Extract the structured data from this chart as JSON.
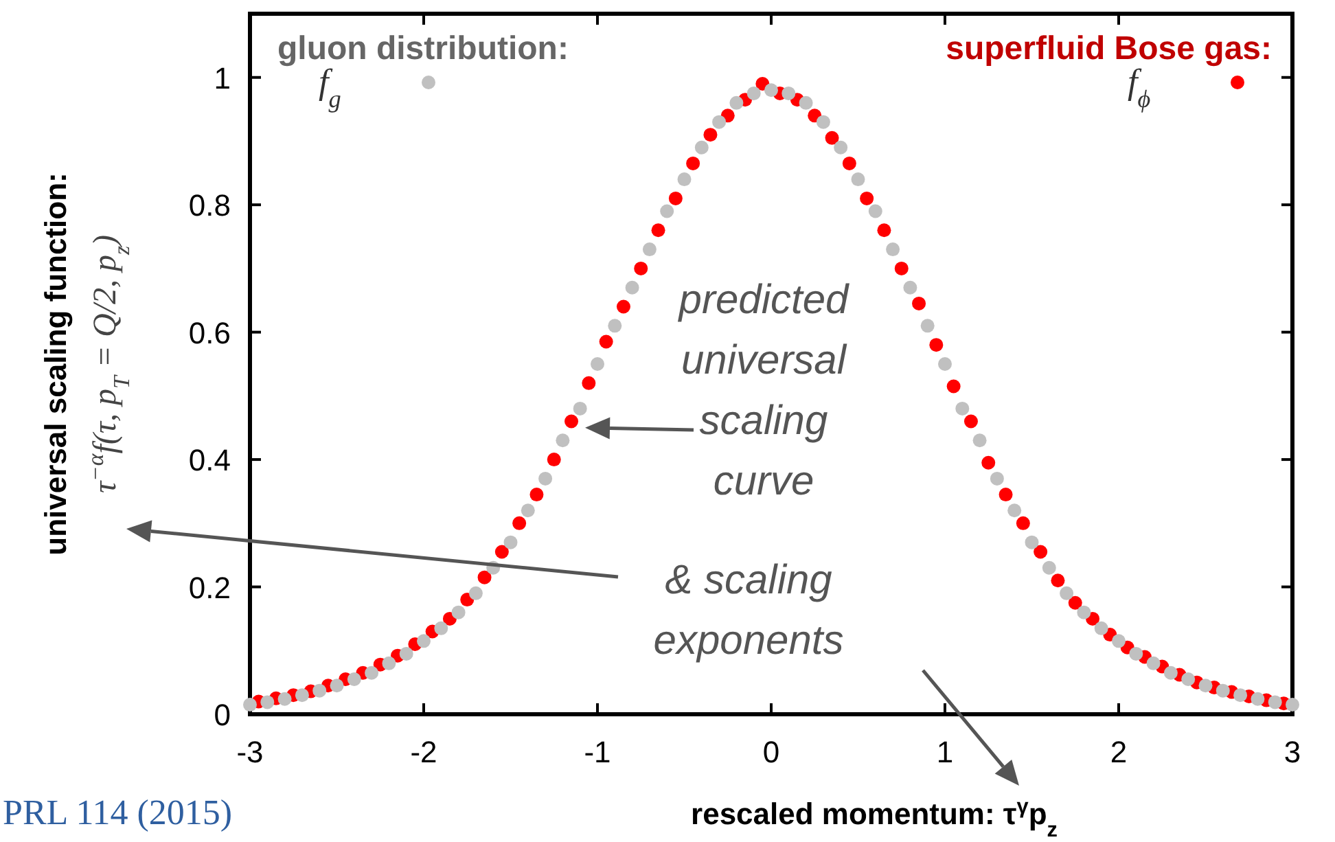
{
  "chart_data": {
    "type": "scatter",
    "xlabel": "rescaled momentum:  τ$^{γ}$p$_{z}$",
    "ylabel": "universal scaling function:\nτ$^{−α}$f(τ, p$_{T}$ = Q/2, p$_{z}$)",
    "xlim": [
      -3,
      3
    ],
    "ylim": [
      0,
      1.1
    ],
    "xticks": [
      -3,
      -2,
      -1,
      0,
      1,
      2,
      3
    ],
    "yticks": [
      0,
      0.2,
      0.4,
      0.6,
      0.8,
      1
    ],
    "grid": false,
    "marker": "circle",
    "legend": "top",
    "series": [
      {
        "name": "f$_{g}$",
        "color": "#c0c0c0",
        "x": [
          -3,
          -2.9,
          -2.8,
          -2.7,
          -2.6,
          -2.5,
          -2.4,
          -2.3,
          -2.2,
          -2.1,
          -2,
          -1.9,
          -1.8,
          -1.7,
          -1.6,
          -1.5,
          -1.4,
          -1.3,
          -1.2,
          -1.1,
          -1,
          -0.9,
          -0.8,
          -0.7,
          -0.6,
          -0.5,
          -0.4,
          -0.3,
          -0.2,
          -0.1,
          0,
          0.1,
          0.2,
          0.3,
          0.4,
          0.5,
          0.6,
          0.7,
          0.8,
          0.9,
          1,
          1.1,
          1.2,
          1.3,
          1.4,
          1.5,
          1.6,
          1.7,
          1.8,
          1.9,
          2,
          2.1,
          2.2,
          2.3,
          2.4,
          2.5,
          2.6,
          2.7,
          2.8,
          2.9,
          3
        ],
        "values": [
          0.015,
          0.019,
          0.024,
          0.03,
          0.037,
          0.045,
          0.055,
          0.065,
          0.08,
          0.095,
          0.115,
          0.135,
          0.16,
          0.19,
          0.23,
          0.27,
          0.32,
          0.37,
          0.43,
          0.48,
          0.55,
          0.61,
          0.67,
          0.73,
          0.79,
          0.84,
          0.89,
          0.93,
          0.96,
          0.975,
          0.98,
          0.975,
          0.96,
          0.93,
          0.89,
          0.84,
          0.79,
          0.73,
          0.67,
          0.61,
          0.55,
          0.48,
          0.43,
          0.37,
          0.32,
          0.27,
          0.23,
          0.19,
          0.16,
          0.135,
          0.115,
          0.095,
          0.08,
          0.065,
          0.055,
          0.045,
          0.037,
          0.03,
          0.024,
          0.019,
          0.015
        ]
      },
      {
        "name": "f$_{ϕ}$",
        "color": "#ff0000",
        "x": [
          -2.95,
          -2.85,
          -2.75,
          -2.65,
          -2.55,
          -2.45,
          -2.35,
          -2.25,
          -2.15,
          -2.05,
          -1.95,
          -1.85,
          -1.75,
          -1.65,
          -1.55,
          -1.45,
          -1.35,
          -1.25,
          -1.15,
          -1.05,
          -0.95,
          -0.85,
          -0.75,
          -0.65,
          -0.55,
          -0.45,
          -0.35,
          -0.25,
          -0.15,
          -0.05,
          0.05,
          0.15,
          0.25,
          0.35,
          0.45,
          0.55,
          0.65,
          0.75,
          0.85,
          0.95,
          1.05,
          1.15,
          1.25,
          1.35,
          1.45,
          1.55,
          1.65,
          1.75,
          1.85,
          1.95,
          2.05,
          2.15,
          2.25,
          2.35,
          2.45,
          2.55,
          2.65,
          2.75,
          2.85,
          2.95
        ],
        "values": [
          0.02,
          0.025,
          0.03,
          0.036,
          0.045,
          0.055,
          0.065,
          0.078,
          0.092,
          0.11,
          0.13,
          0.15,
          0.18,
          0.215,
          0.255,
          0.3,
          0.345,
          0.4,
          0.46,
          0.52,
          0.585,
          0.64,
          0.7,
          0.76,
          0.81,
          0.865,
          0.91,
          0.94,
          0.965,
          0.99,
          0.975,
          0.965,
          0.94,
          0.905,
          0.865,
          0.81,
          0.76,
          0.7,
          0.645,
          0.58,
          0.515,
          0.46,
          0.395,
          0.345,
          0.3,
          0.255,
          0.21,
          0.175,
          0.15,
          0.125,
          0.105,
          0.09,
          0.075,
          0.062,
          0.05,
          0.042,
          0.035,
          0.028,
          0.022,
          0.017
        ]
      }
    ],
    "annotations": [
      "gluon distribution:",
      "superfluid Bose gas:",
      {
        "text": "predicted\nuniversal\nscaling\ncurve",
        "x": -1.15,
        "y": 0.45
      },
      "& scaling\nexponents",
      "PRL 114 (2015)"
    ]
  }
}
